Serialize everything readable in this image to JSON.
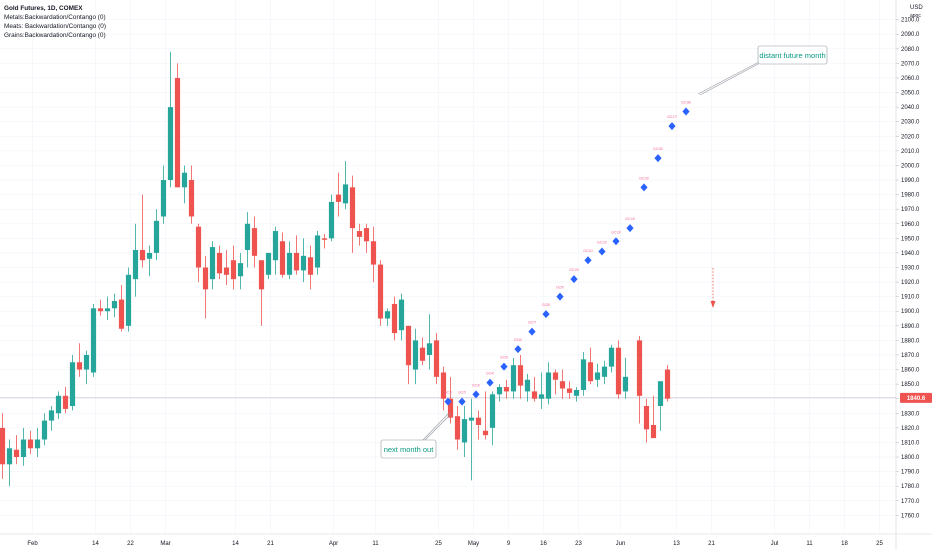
{
  "legend": {
    "title": "Gold Futures, 1D, COMEX",
    "lines": [
      "Metals:Backwardation/Contango (0)",
      "Meats: Backwardation/Contango (0)",
      "Grains:Backwardation/Contango (0)"
    ]
  },
  "header": {
    "currency": "USD",
    "scale_label": "apoc"
  },
  "colors": {
    "up": "#26a69a",
    "down": "#ef5350",
    "diamond": "#2962ff",
    "contract_label": "#f06292",
    "callout": "#089981",
    "grid": "#f0f3fa",
    "current_line": "#b2b5be",
    "price_tag": "#ef5350"
  },
  "callouts": {
    "next": "next month out",
    "distant": "distant future month"
  },
  "chart_data": {
    "type": "candlestick",
    "title": "Gold Futures, 1D, COMEX",
    "ylabel": "USD",
    "ylim": [
      1752,
      2108
    ],
    "y_ticks": [
      1760,
      1770,
      1780,
      1790,
      1800,
      1810,
      1820,
      1830,
      1840,
      1850,
      1860,
      1870,
      1880,
      1890,
      1900,
      1910,
      1920,
      1930,
      1940,
      1950,
      1960,
      1970,
      1980,
      1990,
      2000,
      2010,
      2020,
      2030,
      2040,
      2050,
      2060,
      2070,
      2080,
      2090,
      2100
    ],
    "x_ticks": [
      {
        "label": "Feb",
        "i": 2
      },
      {
        "label": "14",
        "i": 11
      },
      {
        "label": "22",
        "i": 16
      },
      {
        "label": "Mar",
        "i": 21
      },
      {
        "label": "14",
        "i": 31
      },
      {
        "label": "21",
        "i": 36
      },
      {
        "label": "Apr",
        "i": 45
      },
      {
        "label": "11",
        "i": 51
      },
      {
        "label": "25",
        "i": 60
      },
      {
        "label": "May",
        "i": 65
      },
      {
        "label": "9",
        "i": 70
      },
      {
        "label": "16",
        "i": 75
      },
      {
        "label": "23",
        "i": 80
      },
      {
        "label": "Jun",
        "i": 86
      },
      {
        "label": "13",
        "i": 94
      },
      {
        "label": "21",
        "i": 99
      },
      {
        "label": "Jul",
        "i": 108
      },
      {
        "label": "11",
        "i": 113
      },
      {
        "label": "18",
        "i": 118
      },
      {
        "label": "25",
        "i": 123
      }
    ],
    "current_price": 1840.6,
    "current_price_label": "1840.6",
    "candles": [
      {
        "o": 1820,
        "h": 1830,
        "l": 1785,
        "c": 1795
      },
      {
        "o": 1795,
        "h": 1812,
        "l": 1780,
        "c": 1806
      },
      {
        "o": 1805,
        "h": 1815,
        "l": 1795,
        "c": 1800
      },
      {
        "o": 1800,
        "h": 1820,
        "l": 1794,
        "c": 1812
      },
      {
        "o": 1812,
        "h": 1818,
        "l": 1802,
        "c": 1806
      },
      {
        "o": 1806,
        "h": 1820,
        "l": 1800,
        "c": 1812
      },
      {
        "o": 1812,
        "h": 1830,
        "l": 1808,
        "c": 1825
      },
      {
        "o": 1825,
        "h": 1835,
        "l": 1818,
        "c": 1832
      },
      {
        "o": 1830,
        "h": 1845,
        "l": 1826,
        "c": 1842
      },
      {
        "o": 1842,
        "h": 1848,
        "l": 1830,
        "c": 1833
      },
      {
        "o": 1835,
        "h": 1870,
        "l": 1832,
        "c": 1865
      },
      {
        "o": 1865,
        "h": 1878,
        "l": 1855,
        "c": 1860
      },
      {
        "o": 1860,
        "h": 1873,
        "l": 1850,
        "c": 1870
      },
      {
        "o": 1858,
        "h": 1905,
        "l": 1855,
        "c": 1902
      },
      {
        "o": 1902,
        "h": 1908,
        "l": 1897,
        "c": 1900
      },
      {
        "o": 1900,
        "h": 1910,
        "l": 1894,
        "c": 1902
      },
      {
        "o": 1902,
        "h": 1912,
        "l": 1896,
        "c": 1907
      },
      {
        "o": 1908,
        "h": 1918,
        "l": 1886,
        "c": 1888
      },
      {
        "o": 1890,
        "h": 1930,
        "l": 1886,
        "c": 1925
      },
      {
        "o": 1922,
        "h": 1960,
        "l": 1910,
        "c": 1942
      },
      {
        "o": 1942,
        "h": 1980,
        "l": 1930,
        "c": 1935
      },
      {
        "o": 1936,
        "h": 1945,
        "l": 1924,
        "c": 1940
      },
      {
        "o": 1940,
        "h": 1970,
        "l": 1935,
        "c": 1962
      },
      {
        "o": 1965,
        "h": 2000,
        "l": 1960,
        "c": 1990
      },
      {
        "o": 1990,
        "h": 2078,
        "l": 1985,
        "c": 2040
      },
      {
        "o": 2060,
        "h": 2070,
        "l": 1985,
        "c": 1985
      },
      {
        "o": 1985,
        "h": 2000,
        "l": 1974,
        "c": 1995
      },
      {
        "o": 1990,
        "h": 2000,
        "l": 1960,
        "c": 1965
      },
      {
        "o": 1958,
        "h": 1960,
        "l": 1920,
        "c": 1930
      },
      {
        "o": 1930,
        "h": 1938,
        "l": 1895,
        "c": 1915
      },
      {
        "o": 1922,
        "h": 1948,
        "l": 1915,
        "c": 1944
      },
      {
        "o": 1940,
        "h": 1945,
        "l": 1922,
        "c": 1926
      },
      {
        "o": 1930,
        "h": 1942,
        "l": 1918,
        "c": 1925
      },
      {
        "o": 1935,
        "h": 1945,
        "l": 1915,
        "c": 1922
      },
      {
        "o": 1924,
        "h": 1940,
        "l": 1915,
        "c": 1933
      },
      {
        "o": 1942,
        "h": 1968,
        "l": 1930,
        "c": 1960
      },
      {
        "o": 1957,
        "h": 1965,
        "l": 1930,
        "c": 1938
      },
      {
        "o": 1935,
        "h": 1935,
        "l": 1890,
        "c": 1915
      },
      {
        "o": 1925,
        "h": 1940,
        "l": 1922,
        "c": 1940
      },
      {
        "o": 1935,
        "h": 1958,
        "l": 1925,
        "c": 1955
      },
      {
        "o": 1948,
        "h": 1954,
        "l": 1923,
        "c": 1925
      },
      {
        "o": 1925,
        "h": 1948,
        "l": 1922,
        "c": 1940
      },
      {
        "o": 1940,
        "h": 1952,
        "l": 1925,
        "c": 1928
      },
      {
        "o": 1928,
        "h": 1950,
        "l": 1920,
        "c": 1938
      },
      {
        "o": 1937,
        "h": 1945,
        "l": 1915,
        "c": 1925
      },
      {
        "o": 1930,
        "h": 1955,
        "l": 1925,
        "c": 1952
      },
      {
        "o": 1950,
        "h": 1953,
        "l": 1943,
        "c": 1949
      },
      {
        "o": 1950,
        "h": 1980,
        "l": 1948,
        "c": 1975
      },
      {
        "o": 1980,
        "h": 1995,
        "l": 1965,
        "c": 1975
      },
      {
        "o": 1974,
        "h": 2003,
        "l": 1970,
        "c": 1987
      },
      {
        "o": 1985,
        "h": 1993,
        "l": 1940,
        "c": 1957
      },
      {
        "o": 1955,
        "h": 1960,
        "l": 1945,
        "c": 1951
      },
      {
        "o": 1957,
        "h": 1960,
        "l": 1940,
        "c": 1948
      },
      {
        "o": 1948,
        "h": 1958,
        "l": 1920,
        "c": 1932
      },
      {
        "o": 1932,
        "h": 1935,
        "l": 1890,
        "c": 1895
      },
      {
        "o": 1895,
        "h": 1902,
        "l": 1890,
        "c": 1900
      },
      {
        "o": 1905,
        "h": 1910,
        "l": 1880,
        "c": 1885
      },
      {
        "o": 1887,
        "h": 1912,
        "l": 1880,
        "c": 1908
      },
      {
        "o": 1890,
        "h": 1890,
        "l": 1850,
        "c": 1863
      },
      {
        "o": 1860,
        "h": 1888,
        "l": 1850,
        "c": 1880
      },
      {
        "o": 1875,
        "h": 1882,
        "l": 1863,
        "c": 1866
      },
      {
        "o": 1870,
        "h": 1898,
        "l": 1860,
        "c": 1878
      },
      {
        "o": 1880,
        "h": 1885,
        "l": 1850,
        "c": 1855
      },
      {
        "o": 1858,
        "h": 1862,
        "l": 1832,
        "c": 1840
      },
      {
        "o": 1840,
        "h": 1855,
        "l": 1823,
        "c": 1827
      },
      {
        "o": 1828,
        "h": 1835,
        "l": 1805,
        "c": 1812
      },
      {
        "o": 1810,
        "h": 1835,
        "l": 1800,
        "c": 1826
      },
      {
        "o": 1825,
        "h": 1840,
        "l": 1784,
        "c": 1827
      },
      {
        "o": 1827,
        "h": 1832,
        "l": 1812,
        "c": 1822
      },
      {
        "o": 1818,
        "h": 1845,
        "l": 1812,
        "c": 1815
      },
      {
        "o": 1820,
        "h": 1845,
        "l": 1808,
        "c": 1843
      },
      {
        "o": 1843,
        "h": 1850,
        "l": 1838,
        "c": 1848
      },
      {
        "o": 1848,
        "h": 1853,
        "l": 1840,
        "c": 1845
      },
      {
        "o": 1845,
        "h": 1868,
        "l": 1840,
        "c": 1863
      },
      {
        "o": 1863,
        "h": 1870,
        "l": 1840,
        "c": 1849
      },
      {
        "o": 1845,
        "h": 1857,
        "l": 1838,
        "c": 1853
      },
      {
        "o": 1845,
        "h": 1855,
        "l": 1838,
        "c": 1840
      },
      {
        "o": 1840,
        "h": 1858,
        "l": 1833,
        "c": 1843
      },
      {
        "o": 1840,
        "h": 1865,
        "l": 1836,
        "c": 1858
      },
      {
        "o": 1858,
        "h": 1860,
        "l": 1843,
        "c": 1853
      },
      {
        "o": 1852,
        "h": 1860,
        "l": 1840,
        "c": 1847
      },
      {
        "o": 1847,
        "h": 1852,
        "l": 1840,
        "c": 1844
      },
      {
        "o": 1842,
        "h": 1848,
        "l": 1838,
        "c": 1846
      },
      {
        "o": 1846,
        "h": 1872,
        "l": 1842,
        "c": 1867
      },
      {
        "o": 1865,
        "h": 1875,
        "l": 1850,
        "c": 1852
      },
      {
        "o": 1853,
        "h": 1864,
        "l": 1848,
        "c": 1858
      },
      {
        "o": 1855,
        "h": 1866,
        "l": 1850,
        "c": 1862
      },
      {
        "o": 1862,
        "h": 1877,
        "l": 1858,
        "c": 1875
      },
      {
        "o": 1875,
        "h": 1880,
        "l": 1840,
        "c": 1843
      },
      {
        "o": 1845,
        "h": 1868,
        "l": 1840,
        "c": 1855
      }
    ],
    "future_contracts": [
      {
        "i": 60,
        "v": 1838,
        "label": "GC1!"
      },
      {
        "i": 62,
        "v": 1838,
        "label": "GC2!"
      },
      {
        "i": 64,
        "v": 1843,
        "label": "GC3!"
      },
      {
        "i": 66,
        "v": 1851,
        "label": "GC4!"
      },
      {
        "i": 68,
        "v": 1862,
        "label": "GC5!"
      },
      {
        "i": 70,
        "v": 1874,
        "label": "GC6!"
      },
      {
        "i": 72,
        "v": 1886,
        "label": "GC7!"
      },
      {
        "i": 74,
        "v": 1898,
        "label": "GC8!"
      },
      {
        "i": 76,
        "v": 1910,
        "label": "GC9!"
      },
      {
        "i": 78,
        "v": 1922,
        "label": "GC10!"
      },
      {
        "i": 80,
        "v": 1935,
        "label": "GC11!"
      },
      {
        "i": 82,
        "v": 1941,
        "label": "GC12!"
      },
      {
        "i": 84,
        "v": 1948,
        "label": "GC13!"
      },
      {
        "i": 86,
        "v": 1957,
        "label": "GC14!"
      },
      {
        "i": 88,
        "v": 1985,
        "label": "GC15!"
      },
      {
        "i": 90,
        "v": 2005,
        "label": "GC16!"
      },
      {
        "i": 92,
        "v": 2027,
        "label": "GC17!"
      },
      {
        "i": 94,
        "v": 2037,
        "label": "GC18!"
      }
    ],
    "last_candles": [
      {
        "i": 91,
        "o": 1880,
        "h": 1883,
        "l": 1823,
        "c": 1842
      },
      {
        "i": 92,
        "o": 1835,
        "h": 1840,
        "l": 1810,
        "c": 1819
      },
      {
        "i": 93,
        "o": 1822,
        "h": 1842,
        "l": 1813,
        "c": 1813
      },
      {
        "i": 94,
        "o": 1835,
        "h": 1852,
        "l": 1818,
        "c": 1852
      },
      {
        "i": 95,
        "o": 1860,
        "h": 1863,
        "l": 1838,
        "c": 1840
      }
    ]
  }
}
